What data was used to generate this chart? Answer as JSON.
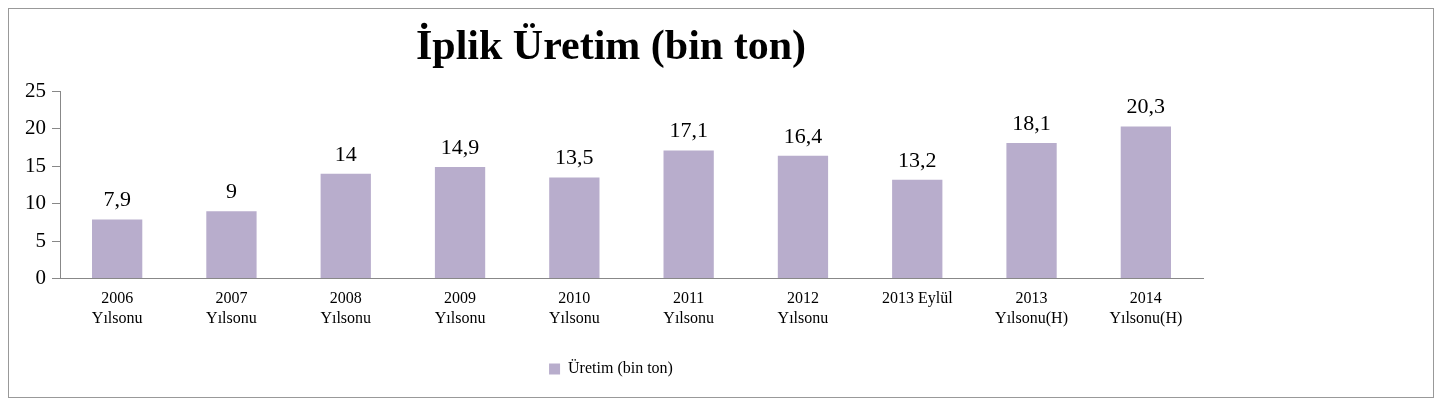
{
  "chart_data": {
    "type": "bar",
    "title": "İplik Üretim (bin ton)",
    "categories": [
      "2006 Yılsonu",
      "2007 Yılsonu",
      "2008 Yılsonu",
      "2009 Yılsonu",
      "2010 Yılsonu",
      "2011 Yılsonu",
      "2012 Yılsonu",
      "2013 Eylül",
      "2013 Yılsonu(H)",
      "2014 Yılsonu(H)"
    ],
    "series": [
      {
        "name": "Üretim (bin ton)",
        "color": "#b8adcc",
        "values": [
          7.9,
          9,
          14,
          14.9,
          13.5,
          17.1,
          16.4,
          13.2,
          18.1,
          20.3
        ]
      }
    ],
    "value_labels": [
      "7,9",
      "9",
      "14",
      "14,9",
      "13,5",
      "17,1",
      "16,4",
      "13,2",
      "18,1",
      "20,3"
    ],
    "ylim": [
      0,
      25
    ],
    "yticks": [
      0,
      5,
      10,
      15,
      20,
      25
    ],
    "grid": false,
    "legend": "bottom"
  }
}
